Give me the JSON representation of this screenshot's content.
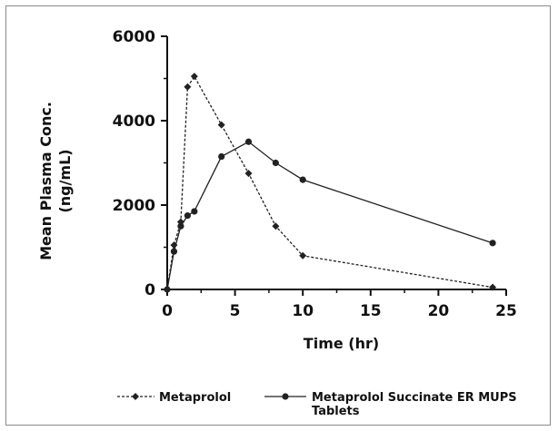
{
  "chart_data": {
    "type": "line",
    "xlabel": "Time (hr)",
    "ylabel": [
      "Mean Plasma Conc.",
      "(ng/mL)"
    ],
    "xlim": [
      0,
      25
    ],
    "ylim": [
      0,
      6000
    ],
    "xticks": [
      "0",
      "5",
      "10",
      "15",
      "20",
      "25"
    ],
    "yticks": [
      "0",
      "2000",
      "4000",
      "6000"
    ],
    "grid": false,
    "legend_position": "bottom",
    "series": [
      {
        "name": "Metaprolol",
        "line_style": "dashed",
        "marker": "diamond",
        "color": "#222222",
        "x": [
          0,
          0.5,
          1,
          1.5,
          2,
          4,
          6,
          8,
          10,
          24
        ],
        "y": [
          0,
          1050,
          1600,
          4800,
          5050,
          3900,
          2750,
          1500,
          800,
          50
        ]
      },
      {
        "name": "Metaprolol Succinate ER MUPS Tablets",
        "line_style": "solid",
        "marker": "circle",
        "color": "#222222",
        "x": [
          0,
          0.5,
          1,
          1.5,
          2,
          4,
          6,
          8,
          10,
          24
        ],
        "y": [
          0,
          900,
          1500,
          1750,
          1850,
          3150,
          3500,
          3000,
          2600,
          1100
        ]
      }
    ]
  }
}
